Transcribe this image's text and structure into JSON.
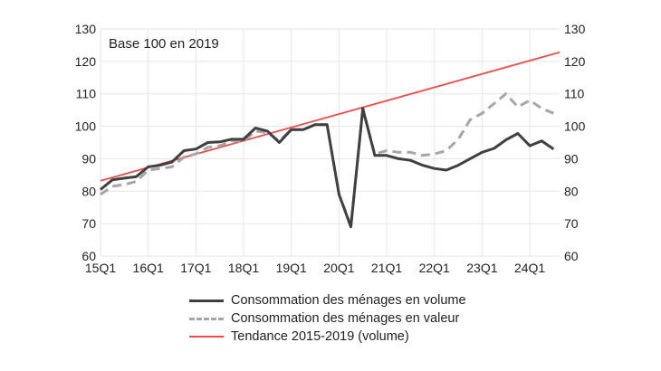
{
  "chart_data": {
    "type": "line",
    "annotation": "Base 100 en 2019",
    "x_tick_labels": [
      "15Q1",
      "16Q1",
      "17Q1",
      "18Q1",
      "19Q1",
      "20Q1",
      "21Q1",
      "22Q1",
      "23Q1",
      "24Q1"
    ],
    "y_ticks": [
      60,
      70,
      80,
      90,
      100,
      110,
      120,
      130
    ],
    "ylim": [
      60,
      130
    ],
    "x_range": [
      0,
      38.5
    ],
    "secondary_y_axis": true,
    "legend_position": "bottom",
    "series": [
      {
        "name": "Consommation des ménages en volume",
        "style": "solid",
        "color": "#404040",
        "x": [
          0,
          1,
          2,
          3,
          4,
          5,
          6,
          7,
          8,
          9,
          10,
          11,
          12,
          13,
          14,
          15,
          16,
          17,
          18,
          19,
          20,
          21,
          22,
          23,
          24,
          25,
          26,
          27,
          28,
          29,
          30,
          31,
          32,
          33,
          34,
          35,
          36,
          37,
          38
        ],
        "values": [
          80.5,
          83.5,
          84,
          84.5,
          87.5,
          88,
          89,
          92.5,
          93,
          95,
          95.2,
          96,
          96,
          99.5,
          98.5,
          95,
          99,
          99,
          100.5,
          100.5,
          79,
          69,
          105.5,
          91,
          91,
          90,
          89.5,
          88,
          87,
          86.5,
          88,
          90,
          92,
          93.2,
          95.8,
          97.8,
          94,
          95.5,
          93
        ]
      },
      {
        "name": "Consommation des ménages en valeur",
        "style": "dashed",
        "color": "#a6a6a6",
        "x": [
          0,
          1,
          2,
          3,
          4,
          5,
          6,
          7,
          8,
          9,
          10,
          11,
          12,
          13,
          14,
          15,
          16,
          17,
          18,
          19,
          20,
          21,
          22,
          23,
          24,
          25,
          26,
          27,
          28,
          29,
          30,
          31,
          32,
          33,
          34,
          35,
          36,
          37,
          38
        ],
        "values": [
          79,
          81.5,
          82,
          83,
          86.5,
          87,
          87.5,
          90.5,
          91.5,
          93.5,
          94,
          95.5,
          95.5,
          98.5,
          98,
          95.5,
          99,
          99,
          100.5,
          100.5,
          79,
          69.5,
          105,
          91.5,
          92.5,
          92,
          92,
          91,
          91.5,
          92.5,
          96,
          102,
          104,
          107,
          110,
          106,
          108,
          105.5,
          104
        ]
      },
      {
        "name": "Tendance 2015-2019 (volume)",
        "style": "solid",
        "color": "#f04a4a",
        "x": [
          0,
          38.5
        ],
        "values": [
          83.2,
          122.8
        ]
      }
    ]
  }
}
